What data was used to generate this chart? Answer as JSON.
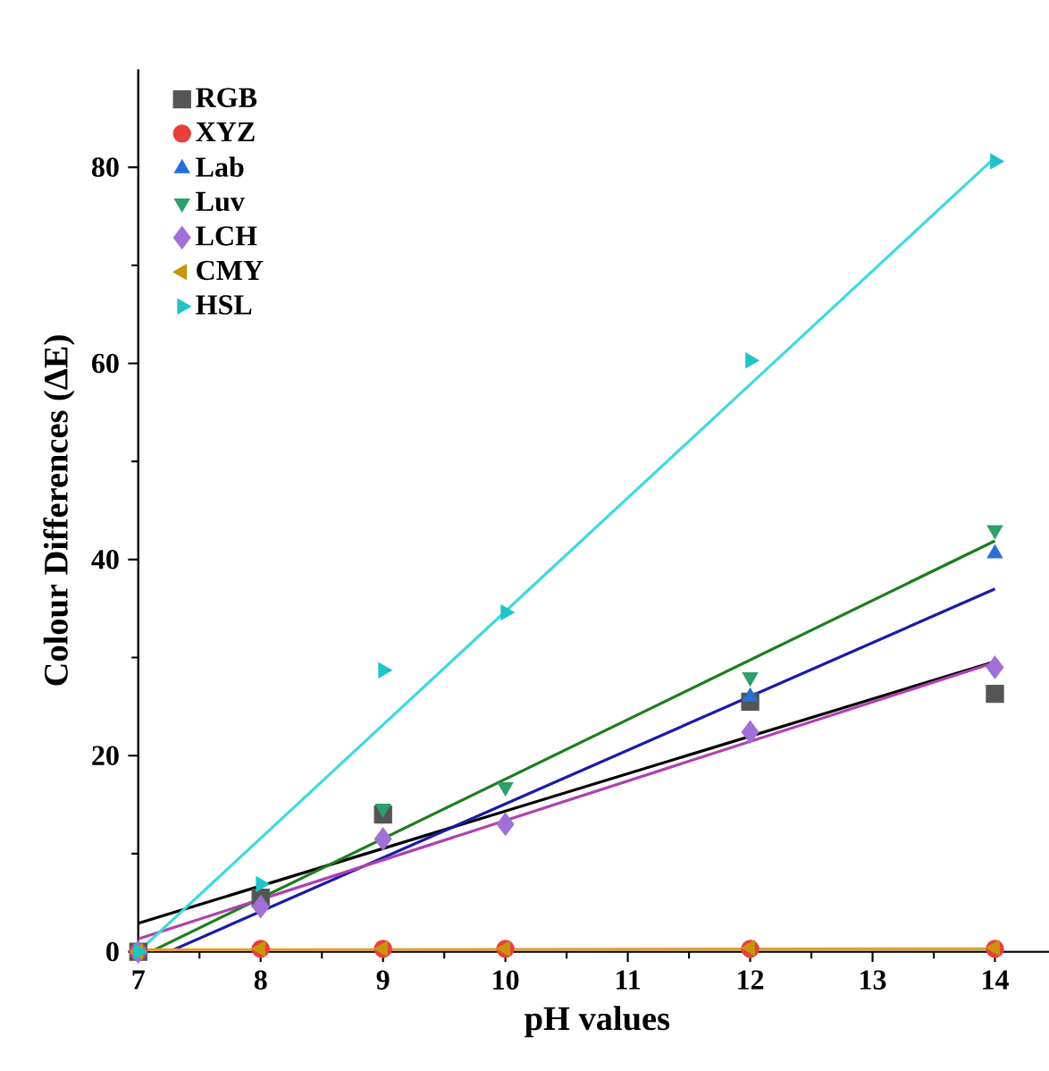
{
  "chart_data": {
    "type": "scatter",
    "xlabel": "pH values",
    "ylabel": "Colour Differences (ΔE)",
    "xlim": [
      7,
      14.5
    ],
    "ylim": [
      0,
      90
    ],
    "xticks": [
      7,
      8,
      9,
      10,
      11,
      12,
      13,
      14
    ],
    "yticks": [
      0,
      20,
      40,
      60,
      80
    ],
    "legend": "top left",
    "grid": false,
    "series": [
      {
        "name": "RGB",
        "color": "#555555",
        "marker": "square",
        "x": [
          7,
          8,
          9,
          10,
          12,
          14
        ],
        "values": [
          0,
          5.5,
          14,
          null,
          25.5,
          26.3
        ]
      },
      {
        "name": "XYZ",
        "color": "#e8403c",
        "marker": "circle",
        "x": [
          7,
          8,
          9,
          10,
          12,
          14
        ],
        "values": [
          0,
          0.3,
          0.3,
          0.3,
          0.3,
          0.3
        ]
      },
      {
        "name": "Lab",
        "color": "#2a6fd6",
        "marker": "triangle",
        "x": [
          7,
          8,
          9,
          10,
          12,
          14
        ],
        "values": [
          0,
          null,
          null,
          null,
          26,
          40.6
        ]
      },
      {
        "name": "Luv",
        "color": "#2e9e6a",
        "marker": "triangle-down",
        "x": [
          7,
          8,
          9,
          10,
          12,
          14
        ],
        "values": [
          0,
          null,
          14.6,
          16.8,
          28,
          43
        ]
      },
      {
        "name": "LCH",
        "color": "#a070d8",
        "marker": "diamond",
        "x": [
          7,
          8,
          9,
          10,
          12,
          14
        ],
        "values": [
          0,
          4.6,
          11.5,
          13,
          22.4,
          29
        ]
      },
      {
        "name": "CMY",
        "color": "#c8960c",
        "marker": "triangle-left",
        "x": [
          7,
          8,
          9,
          10,
          12,
          14
        ],
        "values": [
          0,
          0.3,
          0.3,
          0.3,
          0.4,
          0.4
        ]
      },
      {
        "name": "HSL",
        "color": "#1fc4c8",
        "marker": "triangle-right",
        "x": [
          7,
          8,
          9,
          10,
          12,
          14
        ],
        "values": [
          0,
          6.9,
          28.7,
          34.6,
          60.3,
          80.6
        ]
      },
      {
        "type": "line",
        "color": "#000000",
        "marker": "none",
        "x": [
          7,
          14
        ],
        "values": [
          2.9,
          29.6
        ]
      },
      {
        "type": "line",
        "color": "#1a1aa8",
        "marker": "none",
        "x": [
          7.25,
          14
        ],
        "values": [
          0,
          37
        ]
      },
      {
        "type": "line",
        "color": "#1e7d1e",
        "marker": "none",
        "x": [
          7.1,
          14
        ],
        "values": [
          0,
          41.9
        ]
      },
      {
        "type": "line",
        "color": "#b040b0",
        "marker": "none",
        "x": [
          7,
          14
        ],
        "values": [
          1.3,
          29.5
        ]
      },
      {
        "type": "line",
        "color": "#e0a030",
        "marker": "none",
        "x": [
          7,
          14
        ],
        "values": [
          0.2,
          0.3
        ]
      },
      {
        "type": "line",
        "color": "#40d8e0",
        "marker": "none",
        "x": [
          7,
          14
        ],
        "values": [
          0,
          81
        ]
      }
    ]
  }
}
